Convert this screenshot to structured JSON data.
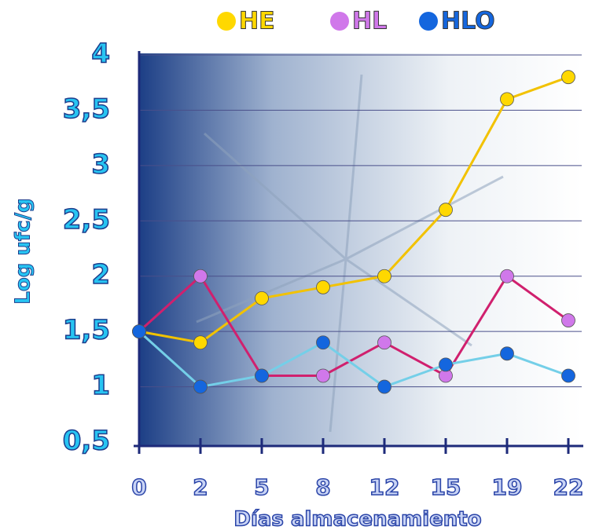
{
  "chart_data": {
    "type": "line",
    "x_label": "Días almacenamiento",
    "y_label": "Log ufc/g",
    "categories": [
      "0",
      "2",
      "5",
      "8",
      "12",
      "15",
      "19",
      "22"
    ],
    "series": [
      {
        "name": "HE",
        "line_color": "#f2c200",
        "marker_color": "#ffd800",
        "values": [
          1.5,
          1.4,
          1.8,
          1.9,
          2.0,
          2.6,
          3.6,
          3.8
        ]
      },
      {
        "name": "HL",
        "line_color": "#d0206e",
        "marker_color": "#d078ea",
        "values": [
          1.5,
          2.0,
          1.1,
          1.1,
          1.4,
          1.1,
          2.0,
          1.6
        ]
      },
      {
        "name": "HLO",
        "line_color": "#74cfe8",
        "marker_color": "#1466de",
        "values": [
          1.5,
          1.0,
          1.1,
          1.4,
          1.0,
          1.2,
          1.3,
          1.1
        ]
      }
    ],
    "ylim": [
      0.5,
      4
    ],
    "yticks": [
      {
        "value": 0.5,
        "label": "0,5"
      },
      1,
      {
        "value": 1.5,
        "label": "1,5"
      },
      2,
      {
        "value": 2.5,
        "label": "2,5"
      },
      3,
      {
        "value": 3.5,
        "label": "3,5"
      },
      4
    ],
    "grid": true,
    "legend": "top"
  }
}
